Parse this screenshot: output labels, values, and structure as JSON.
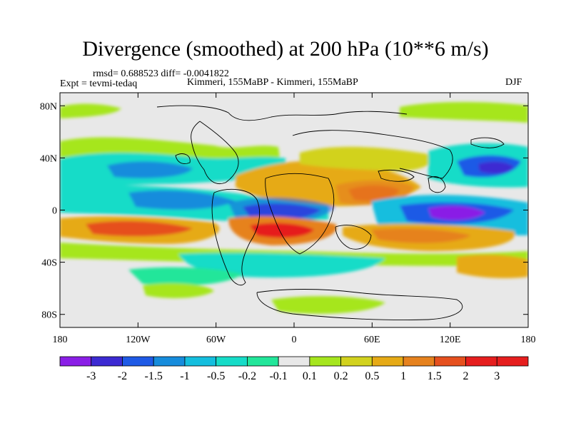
{
  "title": "Divergence (smoothed) at 200 hPa (10**6 m/s)",
  "stats_line": "rmsd= 0.688523  diff= -0.0041822",
  "expt_label": "Expt = tevmi-tedaq",
  "subtitle": "Kimmeri, 155MaBP - Kimmeri, 155MaBP",
  "season": "DJF",
  "map": {
    "lat_ticks": [
      "80N",
      "40N",
      "0",
      "40S",
      "80S"
    ],
    "lon_ticks": [
      "180",
      "120W",
      "60W",
      "0",
      "60E",
      "120E",
      "180"
    ],
    "lon_range": [
      -180,
      180
    ],
    "lat_range": [
      -90,
      90
    ]
  },
  "colorbar": {
    "labels": [
      "-3",
      "-2",
      "-1.5",
      "-1",
      "-0.5",
      "-0.2",
      "-0.1",
      "0.1",
      "0.2",
      "0.5",
      "1",
      "1.5",
      "2",
      "3"
    ],
    "colors": [
      "#8a1ee6",
      "#3c2ad2",
      "#1e5ae6",
      "#168cdc",
      "#14bede",
      "#16dcc8",
      "#22e69a",
      "#e8e8e8",
      "#a6e61e",
      "#d2d21e",
      "#e6aa16",
      "#e6821e",
      "#e6501e",
      "#e61e1e"
    ]
  },
  "field_colors": {
    "neutral": "#e8e8e8",
    "green": "#a6e61e",
    "olive": "#d2d21e",
    "orange": "#e6aa16",
    "dark_orange": "#e6821e",
    "red_orange": "#e6501e",
    "teal": "#22e69a",
    "cyan_green": "#16dcc8",
    "cyan": "#14bede",
    "light_blue": "#168cdc",
    "blue": "#1e5ae6",
    "dark_blue": "#3c2ad2",
    "purple": "#8a1ee6"
  }
}
